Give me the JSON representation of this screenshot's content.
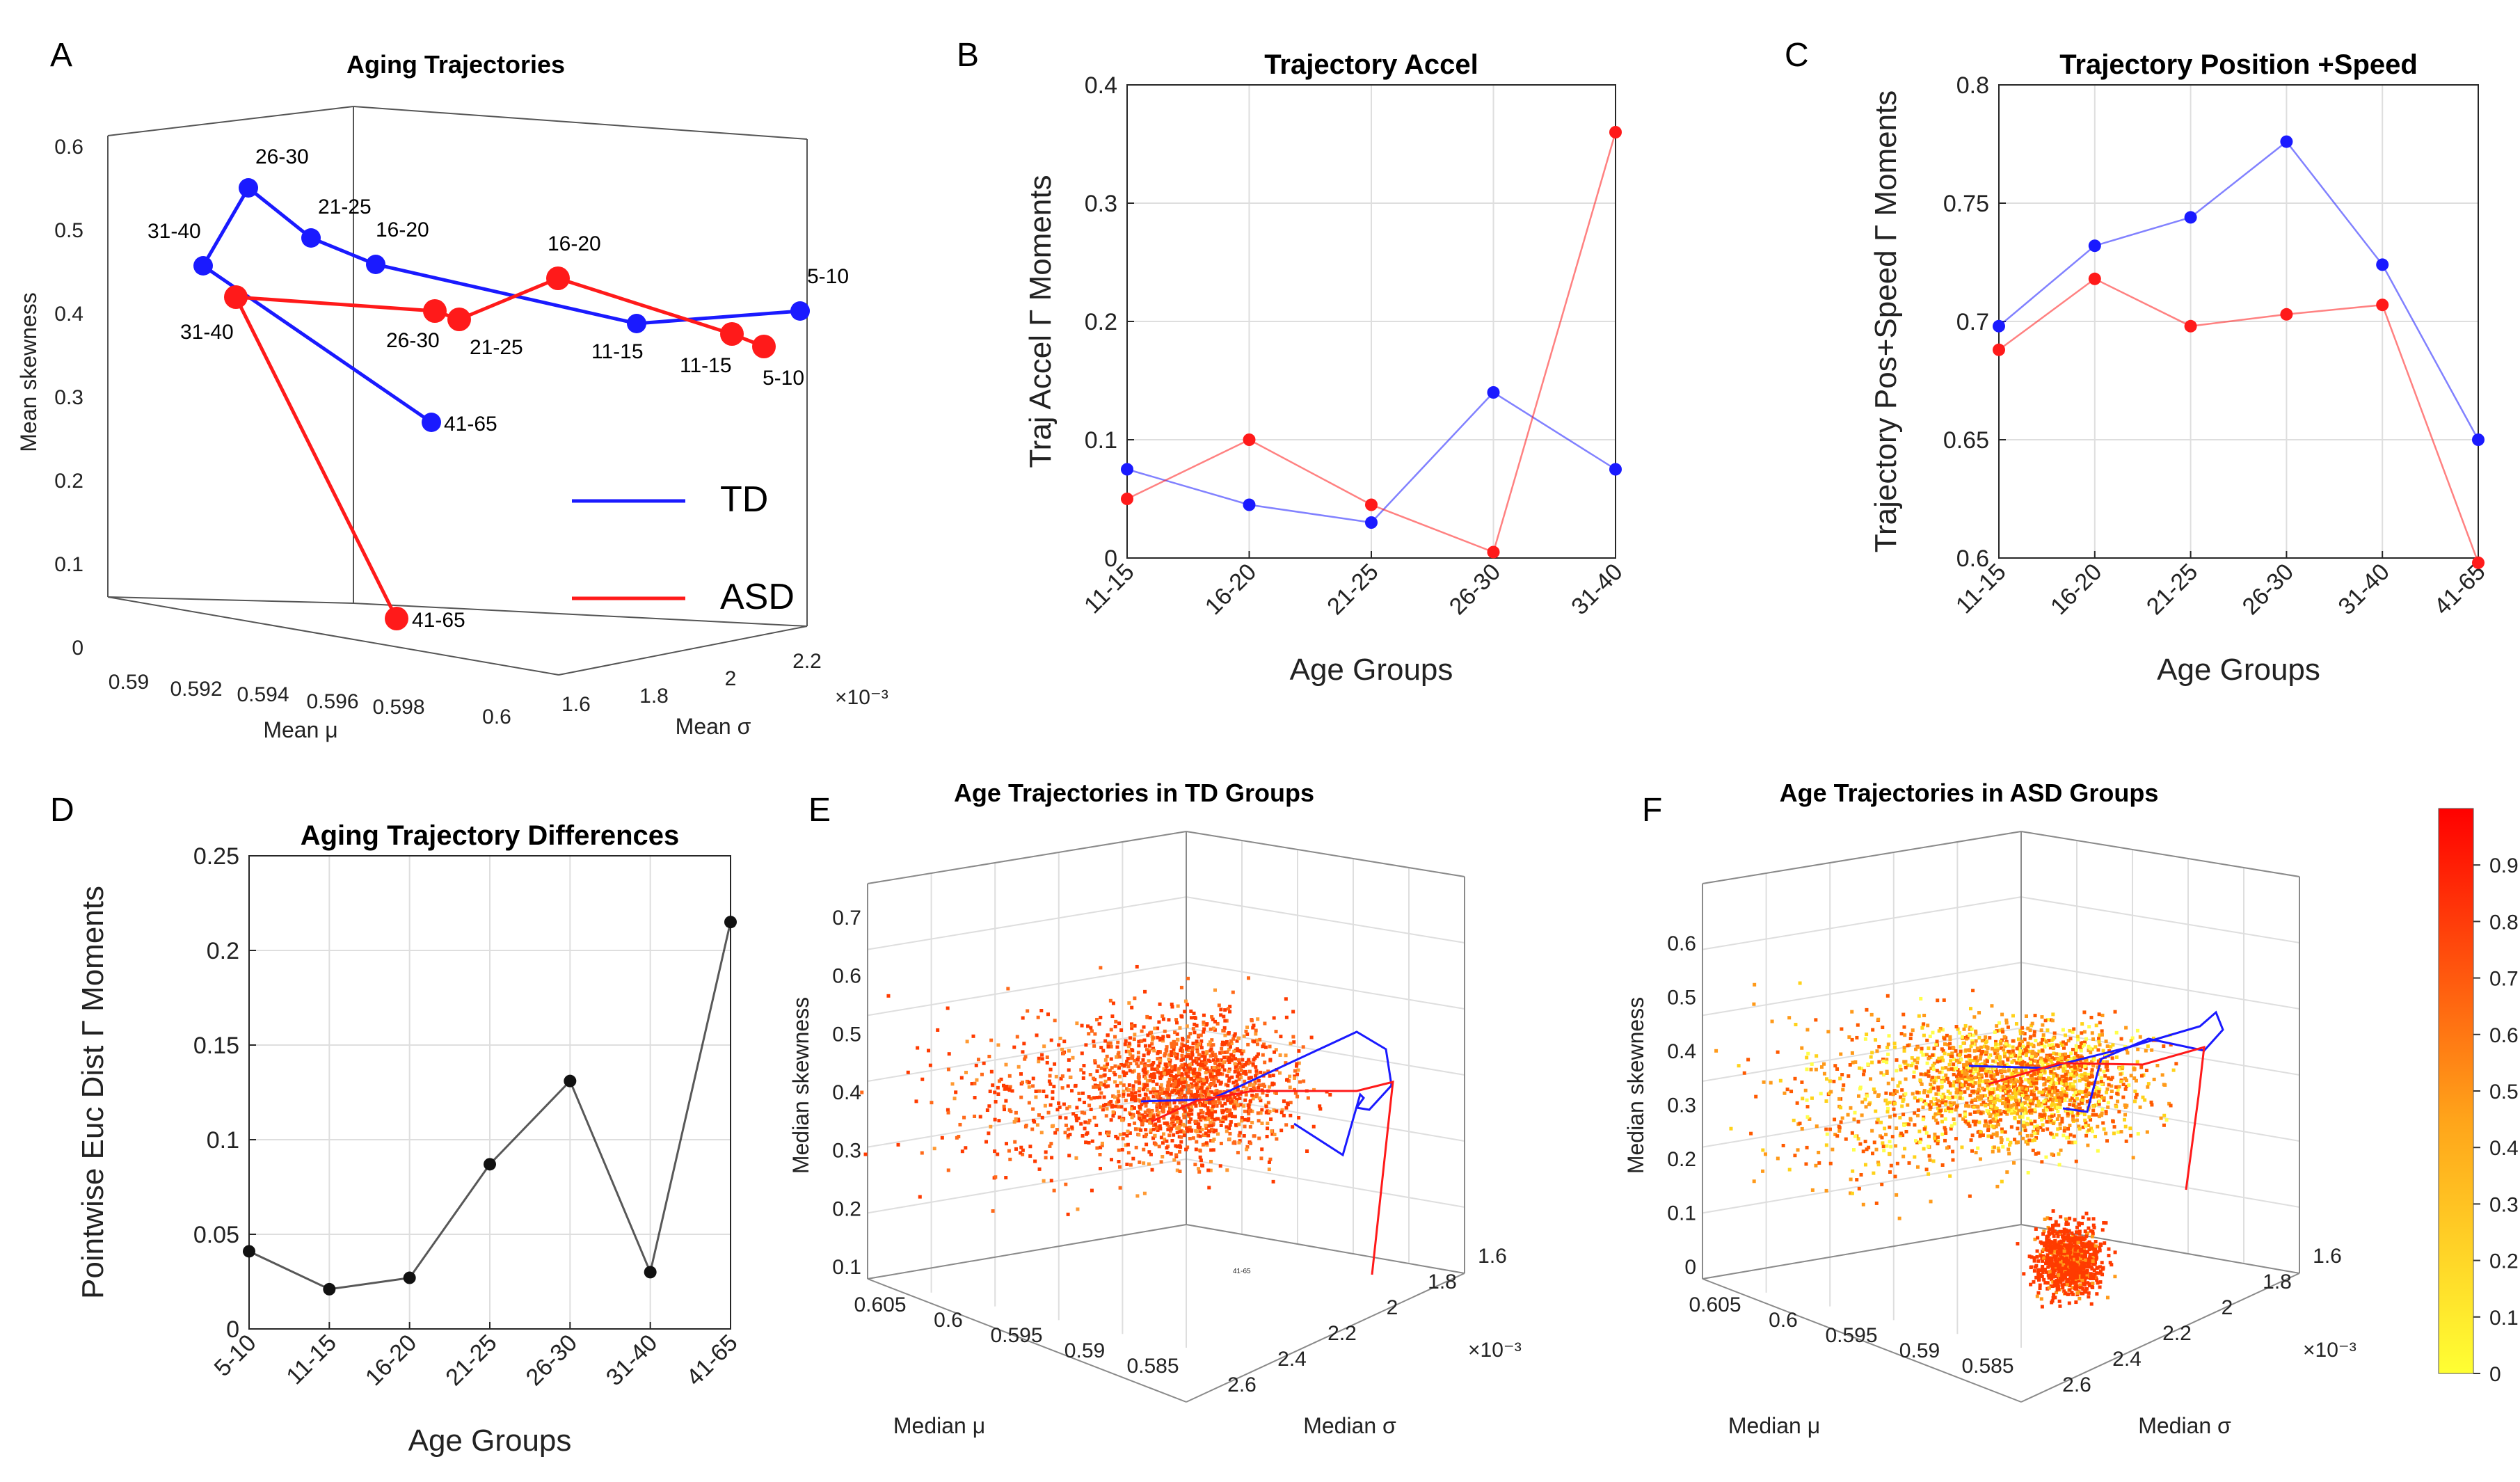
{
  "panel_letters": [
    "A",
    "B",
    "C",
    "D",
    "E",
    "F"
  ],
  "colors": {
    "td": "#1a1aff",
    "asd": "#ff1a1a",
    "diff": "#111111"
  },
  "chart_data": [
    {
      "id": "A",
      "type": "line3d",
      "title": "Aging Trajectories",
      "xlabel": "Mean μ",
      "ylabel": "Mean σ",
      "zlabel": "Mean skewness",
      "x_ticks": [
        "0.59",
        "0.592",
        "0.594",
        "0.596",
        "0.598",
        "0.6"
      ],
      "y_ticks": [
        "1.6",
        "1.8",
        "2",
        "2.2"
      ],
      "y_exponent": "×10⁻³",
      "z_ticks": [
        "0",
        "0.1",
        "0.2",
        "0.3",
        "0.4",
        "0.5",
        "0.6"
      ],
      "legend": [
        {
          "name": "TD",
          "color": "#1a1aff"
        },
        {
          "name": "ASD",
          "color": "#ff1a1a"
        }
      ],
      "series": [
        {
          "name": "TD",
          "color": "#1a1aff",
          "points": [
            {
              "label": "5-10",
              "z": 0.39
            },
            {
              "label": "11-15",
              "z": 0.38
            },
            {
              "label": "16-20",
              "z": 0.45
            },
            {
              "label": "21-25",
              "z": 0.48
            },
            {
              "label": "26-30",
              "z": 0.54
            },
            {
              "label": "31-40",
              "z": 0.45
            },
            {
              "label": "41-65",
              "z": 0.26
            }
          ]
        },
        {
          "name": "ASD",
          "color": "#ff1a1a",
          "points": [
            {
              "label": "5-10",
              "z": 0.35
            },
            {
              "label": "11-15",
              "z": 0.36
            },
            {
              "label": "16-20",
              "z": 0.43
            },
            {
              "label": "21-25",
              "z": 0.38
            },
            {
              "label": "26-30",
              "z": 0.39
            },
            {
              "label": "31-40",
              "z": 0.41
            },
            {
              "label": "41-65",
              "z": 0.03
            }
          ]
        }
      ]
    },
    {
      "id": "B",
      "type": "line",
      "title": "Trajectory Accel",
      "xlabel": "Age Groups",
      "ylabel": "Traj Accel Γ Moments",
      "categories": [
        "11-15",
        "16-20",
        "21-25",
        "26-30",
        "31-40"
      ],
      "ylim": [
        0,
        0.4
      ],
      "yticks": [
        "0",
        "0.1",
        "0.2",
        "0.3",
        "0.4"
      ],
      "series": [
        {
          "name": "TD",
          "color": "#1a1aff",
          "values": [
            0.075,
            0.045,
            0.03,
            0.14,
            0.075
          ]
        },
        {
          "name": "ASD",
          "color": "#ff1a1a",
          "values": [
            0.05,
            0.1,
            0.045,
            0.005,
            0.36
          ]
        }
      ]
    },
    {
      "id": "C",
      "type": "line",
      "title": "Trajectory Position +Speed",
      "xlabel": "Age Groups",
      "ylabel": "Trajectory Pos+Speed Γ Moments",
      "categories": [
        "11-15",
        "16-20",
        "21-25",
        "26-30",
        "31-40",
        "41-65"
      ],
      "ylim": [
        0.6,
        0.8
      ],
      "yticks": [
        "0.6",
        "0.65",
        "0.7",
        "0.75",
        "0.8"
      ],
      "series": [
        {
          "name": "TD",
          "color": "#1a1aff",
          "values": [
            0.698,
            0.732,
            0.744,
            0.776,
            0.724,
            0.65
          ]
        },
        {
          "name": "ASD",
          "color": "#ff1a1a",
          "values": [
            0.688,
            0.718,
            0.698,
            0.703,
            0.707,
            0.598
          ]
        }
      ]
    },
    {
      "id": "D",
      "type": "line",
      "title": "Aging Trajectory Differences",
      "xlabel": "Age Groups",
      "ylabel": "Pointwise Euc Dist Γ Moments",
      "categories": [
        "5-10",
        "11-15",
        "16-20",
        "21-25",
        "26-30",
        "31-40",
        "41-65"
      ],
      "ylim": [
        0,
        0.25
      ],
      "yticks": [
        "0",
        "0.05",
        "0.1",
        "0.15",
        "0.2",
        "0.25"
      ],
      "series": [
        {
          "name": "Difference",
          "color": "#111111",
          "values": [
            0.041,
            0.021,
            0.027,
            0.087,
            0.131,
            0.03,
            0.215
          ]
        }
      ]
    },
    {
      "id": "E",
      "type": "scatter3d",
      "title": "Age Trajectories in TD Groups",
      "xlabel": "Median μ",
      "ylabel": "Median σ",
      "zlabel": "Median skewness",
      "x_ticks": [
        "0.605",
        "0.6",
        "0.595",
        "0.59",
        "0.585"
      ],
      "y_ticks": [
        "2.6",
        "2.4",
        "2.2",
        "2",
        "1.8",
        "1.6"
      ],
      "y_exponent": "×10⁻³",
      "z_ticks": [
        "0.1",
        "0.2",
        "0.3",
        "0.4",
        "0.5",
        "0.6",
        "0.7"
      ],
      "annotations": [
        "41-65"
      ]
    },
    {
      "id": "F",
      "type": "scatter3d",
      "title": "Age Trajectories in ASD Groups",
      "xlabel": "Median μ",
      "ylabel": "Median σ",
      "zlabel": "Median skewness",
      "x_ticks": [
        "0.605",
        "0.6",
        "0.595",
        "0.59",
        "0.585"
      ],
      "y_ticks": [
        "2.6",
        "2.4",
        "2.2",
        "2",
        "1.8",
        "1.6"
      ],
      "y_exponent": "×10⁻³",
      "z_ticks": [
        "0",
        "0.1",
        "0.2",
        "0.3",
        "0.4",
        "0.5",
        "0.6"
      ],
      "colorbar_ticks": [
        "0",
        "0.1",
        "0.2",
        "0.3",
        "0.4",
        "0.5",
        "0.6",
        "0.7",
        "0.8",
        "0.9"
      ],
      "annotations": []
    }
  ]
}
